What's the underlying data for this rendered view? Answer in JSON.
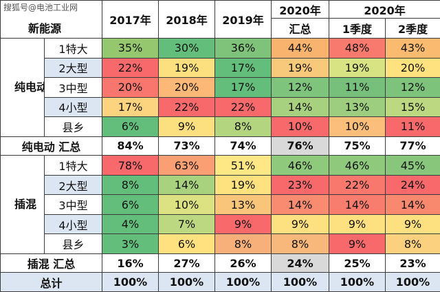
{
  "watermark": "搜狐号@电池工业网",
  "corner_label": "新能源",
  "headers": {
    "y2017": "2017年",
    "y2018": "2018年",
    "y2019": "2019年",
    "y2020_top": "2020年",
    "y2020_sub": "汇总",
    "q_group": "2020年",
    "q1": "1季度",
    "q2": "2季度"
  },
  "groups": {
    "bev": {
      "label": "纯电动",
      "rows": [
        {
          "name": "1特大",
          "values": [
            "35%",
            "30%",
            "36%",
            "44%",
            "48%",
            "43%"
          ],
          "colors": [
            "#95c76f",
            "#63be7b",
            "#7fc27a",
            "#f8b46e",
            "#f87a6e",
            "#fabb70"
          ]
        },
        {
          "name": "2大型",
          "values": [
            "22%",
            "19%",
            "17%",
            "19%",
            "19%",
            "20%"
          ],
          "colors": [
            "#f8696b",
            "#fce07f",
            "#63be7b",
            "#f8c97a",
            "#d8e483",
            "#fde27f"
          ]
        },
        {
          "name": "3中型",
          "values": [
            "20%",
            "20%",
            "17%",
            "12%",
            "11%",
            "12%"
          ],
          "colors": [
            "#f8766d",
            "#fcb876",
            "#63be7b",
            "#7fc47d",
            "#77c07b",
            "#7dc37c"
          ]
        },
        {
          "name": "4小型",
          "values": [
            "17%",
            "22%",
            "22%",
            "14%",
            "13%",
            "15%"
          ],
          "colors": [
            "#fcd47f",
            "#f8696b",
            "#f8696b",
            "#a7d17f",
            "#9dcd7e",
            "#bcd881"
          ]
        },
        {
          "name": "县乡",
          "values": [
            "6%",
            "9%",
            "8%",
            "10%",
            "10%",
            "11%"
          ],
          "colors": [
            "#63be7b",
            "#fce07f",
            "#b4d580",
            "#f8696b",
            "#fcbf7b",
            "#f8696b"
          ]
        }
      ]
    },
    "bev_total": {
      "name": "纯电动 汇总",
      "values": [
        "84%",
        "73%",
        "74%",
        "76%",
        "75%",
        "77%"
      ]
    },
    "phev": {
      "label": "插混",
      "rows": [
        {
          "name": "1特大",
          "values": [
            "78%",
            "63%",
            "51%",
            "46%",
            "46%",
            "45%"
          ],
          "colors": [
            "#f8696b",
            "#fa9e73",
            "#fde885",
            "#8ec97c",
            "#8ec97c",
            "#88c67b"
          ]
        },
        {
          "name": "2大型",
          "values": [
            "8%",
            "14%",
            "19%",
            "23%",
            "22%",
            "24%"
          ],
          "colors": [
            "#63be7b",
            "#a9d27f",
            "#fde27f",
            "#f8696b",
            "#f8786d",
            "#f8696b"
          ]
        },
        {
          "name": "3中型",
          "values": [
            "6%",
            "10%",
            "13%",
            "14%",
            "14%",
            "14%"
          ],
          "colors": [
            "#63be7b",
            "#dce281",
            "#f8c57a",
            "#f88b70",
            "#f87d6e",
            "#f8896f"
          ]
        },
        {
          "name": "4小型",
          "values": [
            "4%",
            "7%",
            "9%",
            "9%",
            "9%",
            "9%"
          ],
          "colors": [
            "#63be7b",
            "#bcd881",
            "#f8696b",
            "#fde07f",
            "#fde07f",
            "#fde07f"
          ]
        },
        {
          "name": "县乡",
          "values": [
            "3%",
            "6%",
            "8%",
            "8%",
            "9%",
            "8%"
          ],
          "colors": [
            "#63be7b",
            "#ffe17f",
            "#f8b07b",
            "#f8b87b",
            "#f8696b",
            "#fbd07e"
          ]
        }
      ]
    },
    "phev_total": {
      "name": "插混 汇总",
      "values": [
        "16%",
        "27%",
        "26%",
        "24%",
        "25%",
        "23%"
      ]
    }
  },
  "grand_total": {
    "name": "总计",
    "values": [
      "100%",
      "100%",
      "100%",
      "100%",
      "100%",
      "100%"
    ]
  },
  "colors": {
    "alt_row": "#dce6f2",
    "total_highlight": "#d9d9d9",
    "border": "#3a3a3a"
  }
}
